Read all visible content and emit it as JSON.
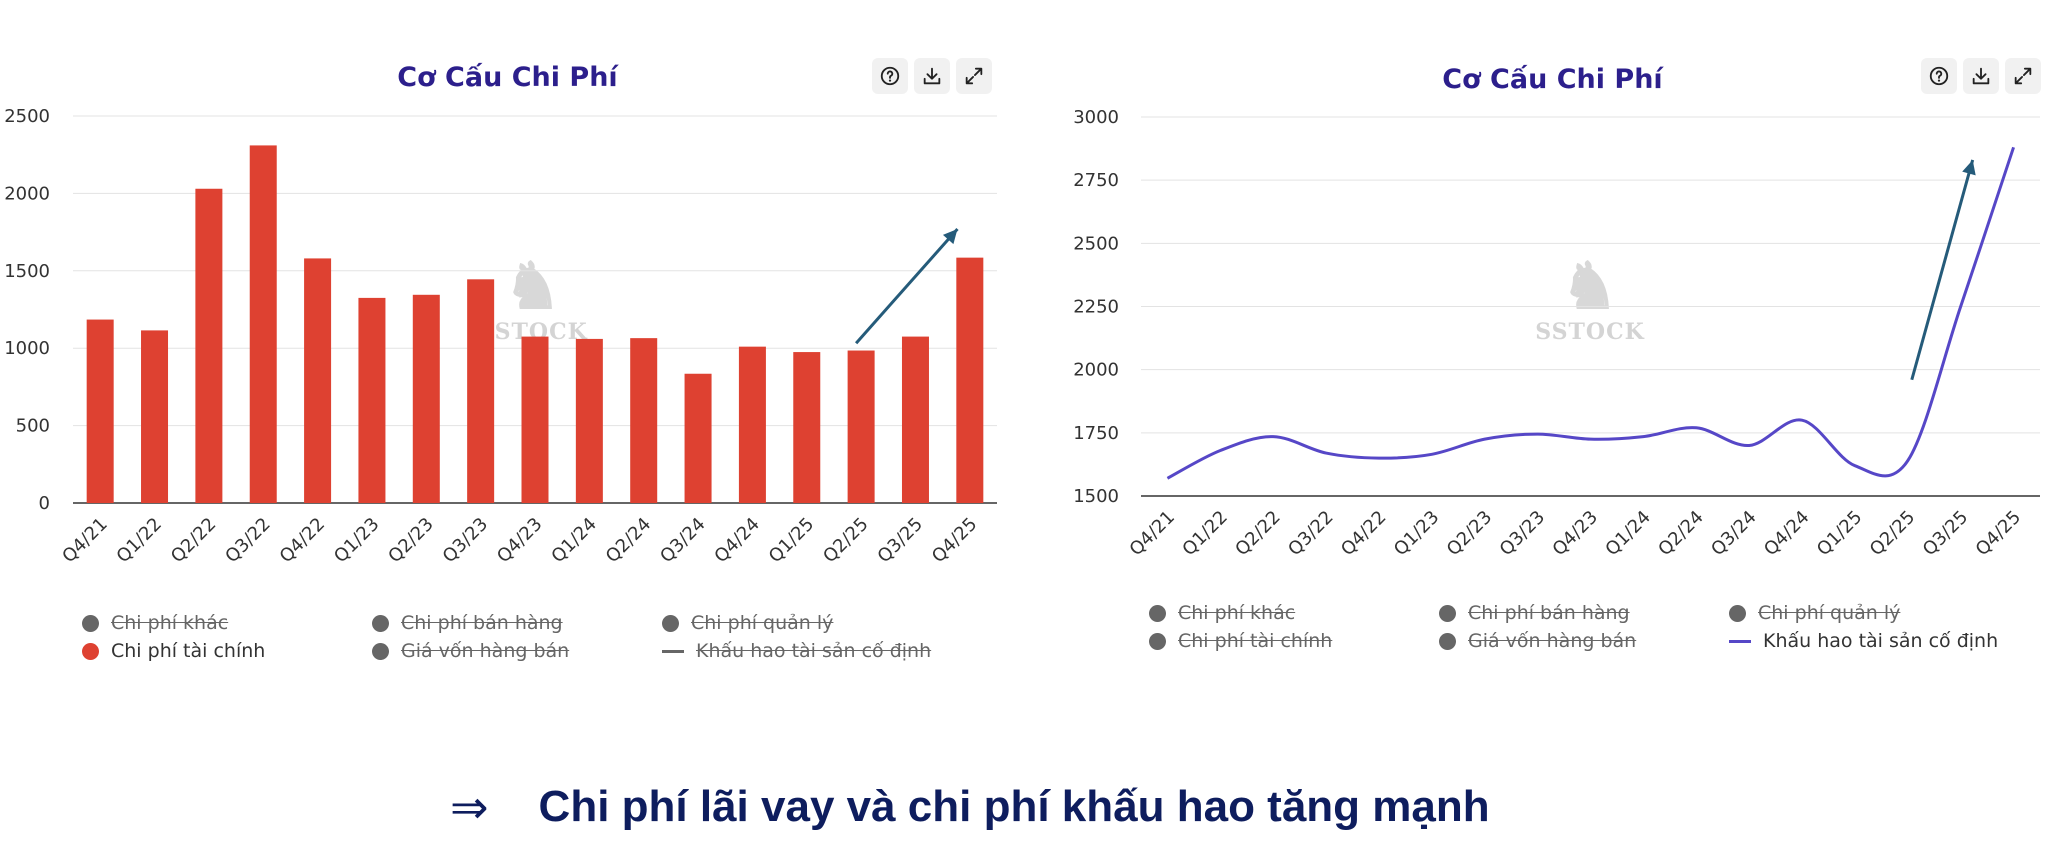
{
  "colors": {
    "title": "#2c1f8c",
    "bar": "#de4131",
    "line": "#5647c7",
    "arrow": "#255b7a",
    "legend_off": "#666666",
    "grid": "#e3e3e3",
    "conclusion": "#0e1d5e"
  },
  "toolbar_icons": [
    "help-icon",
    "download-icon",
    "expand-icon"
  ],
  "left": {
    "watermark": "SSTOCK",
    "legend": [
      {
        "label": "Chi phí khác",
        "active": false,
        "marker": "dot"
      },
      {
        "label": "Chi phí bán hàng",
        "active": false,
        "marker": "dot"
      },
      {
        "label": "Chi phí quản lý",
        "active": false,
        "marker": "dot"
      },
      {
        "label": "Chi phí tài chính",
        "active": true,
        "marker": "dot"
      },
      {
        "label": "Giá vốn hàng bán",
        "active": false,
        "marker": "dot"
      },
      {
        "label": "Khấu hao tài sản cố định",
        "active": false,
        "marker": "line"
      }
    ]
  },
  "right": {
    "watermark": "SSTOCK",
    "legend": [
      {
        "label": "Chi phí khác",
        "active": false,
        "marker": "dot"
      },
      {
        "label": "Chi phí bán hàng",
        "active": false,
        "marker": "dot"
      },
      {
        "label": "Chi phí quản lý",
        "active": false,
        "marker": "dot"
      },
      {
        "label": "Chi phí tài chính",
        "active": false,
        "marker": "dot"
      },
      {
        "label": "Giá vốn hàng bán",
        "active": false,
        "marker": "dot"
      },
      {
        "label": "Khấu hao tài sản cố định",
        "active": true,
        "marker": "line"
      }
    ]
  },
  "chart_data": [
    {
      "type": "bar",
      "title": "Cơ Cấu Chi Phí",
      "categories": [
        "Q4/21",
        "Q1/22",
        "Q2/22",
        "Q3/22",
        "Q4/22",
        "Q1/23",
        "Q2/23",
        "Q3/23",
        "Q4/23",
        "Q1/24",
        "Q2/24",
        "Q3/24",
        "Q4/24",
        "Q1/25",
        "Q2/25",
        "Q3/25",
        "Q4/25"
      ],
      "series": [
        {
          "name": "Chi phí tài chính",
          "values": [
            1185,
            1115,
            2030,
            2310,
            1580,
            1325,
            1345,
            1445,
            1075,
            1060,
            1065,
            835,
            1010,
            975,
            985,
            1075,
            1585
          ]
        }
      ],
      "yticks": [
        0,
        500,
        1000,
        1500,
        2000,
        2500
      ],
      "ylim": [
        0,
        2500
      ],
      "grid": true,
      "legend_position": "bottom"
    },
    {
      "type": "line",
      "title": "Cơ Cấu Chi Phí",
      "categories": [
        "Q4/21",
        "Q1/22",
        "Q2/22",
        "Q3/22",
        "Q4/22",
        "Q1/23",
        "Q2/23",
        "Q3/23",
        "Q4/23",
        "Q1/24",
        "Q2/24",
        "Q3/24",
        "Q4/24",
        "Q1/25",
        "Q2/25",
        "Q3/25",
        "Q4/25"
      ],
      "series": [
        {
          "name": "Khấu hao tài sản cố định",
          "values": [
            1570,
            1680,
            1735,
            1670,
            1650,
            1665,
            1725,
            1745,
            1725,
            1735,
            1770,
            1700,
            1800,
            1620,
            1640,
            2250,
            2880
          ]
        }
      ],
      "yticks": [
        1500,
        1750,
        2000,
        2250,
        2500,
        2750,
        3000
      ],
      "ylim": [
        1500,
        3000
      ],
      "grid": true,
      "legend_position": "bottom"
    }
  ],
  "conclusion": {
    "arrow": "⇒",
    "text": "Chi phí lãi vay và chi phí khấu hao tăng mạnh"
  }
}
